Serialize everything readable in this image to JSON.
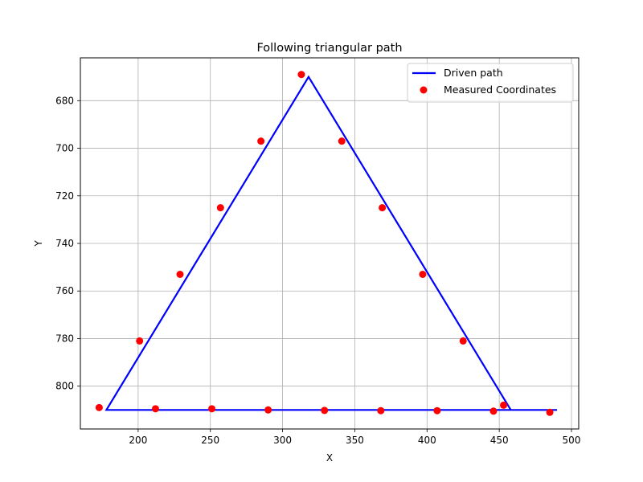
{
  "chart_data": {
    "type": "scatter",
    "title": "Following triangular path",
    "xlabel": "X",
    "ylabel": "Y",
    "xlim": [
      160,
      505
    ],
    "ylim": [
      818,
      662
    ],
    "y_inverted": true,
    "xticks": [
      200,
      250,
      300,
      350,
      400,
      450,
      500
    ],
    "yticks": [
      680,
      700,
      720,
      740,
      760,
      780,
      800
    ],
    "grid": true,
    "legend_position": "upper-right",
    "series": [
      {
        "name": "Driven path",
        "kind": "line",
        "color": "#0000ff",
        "x": [
          490,
          458,
          318,
          178,
          490
        ],
        "y": [
          810,
          810,
          670,
          810,
          810
        ]
      },
      {
        "name": "Measured Coordinates",
        "kind": "scatter",
        "color": "#ff0000",
        "x": [
          173,
          201,
          229,
          257,
          285,
          313,
          341,
          369,
          397,
          425,
          453,
          485,
          446,
          407,
          368,
          329,
          290,
          251,
          212
        ],
        "y": [
          809,
          781,
          753,
          725,
          697,
          669,
          697,
          725,
          753,
          781,
          808,
          811,
          810.5,
          810.3,
          810.3,
          810.2,
          810,
          809.5,
          809.5
        ]
      }
    ]
  }
}
